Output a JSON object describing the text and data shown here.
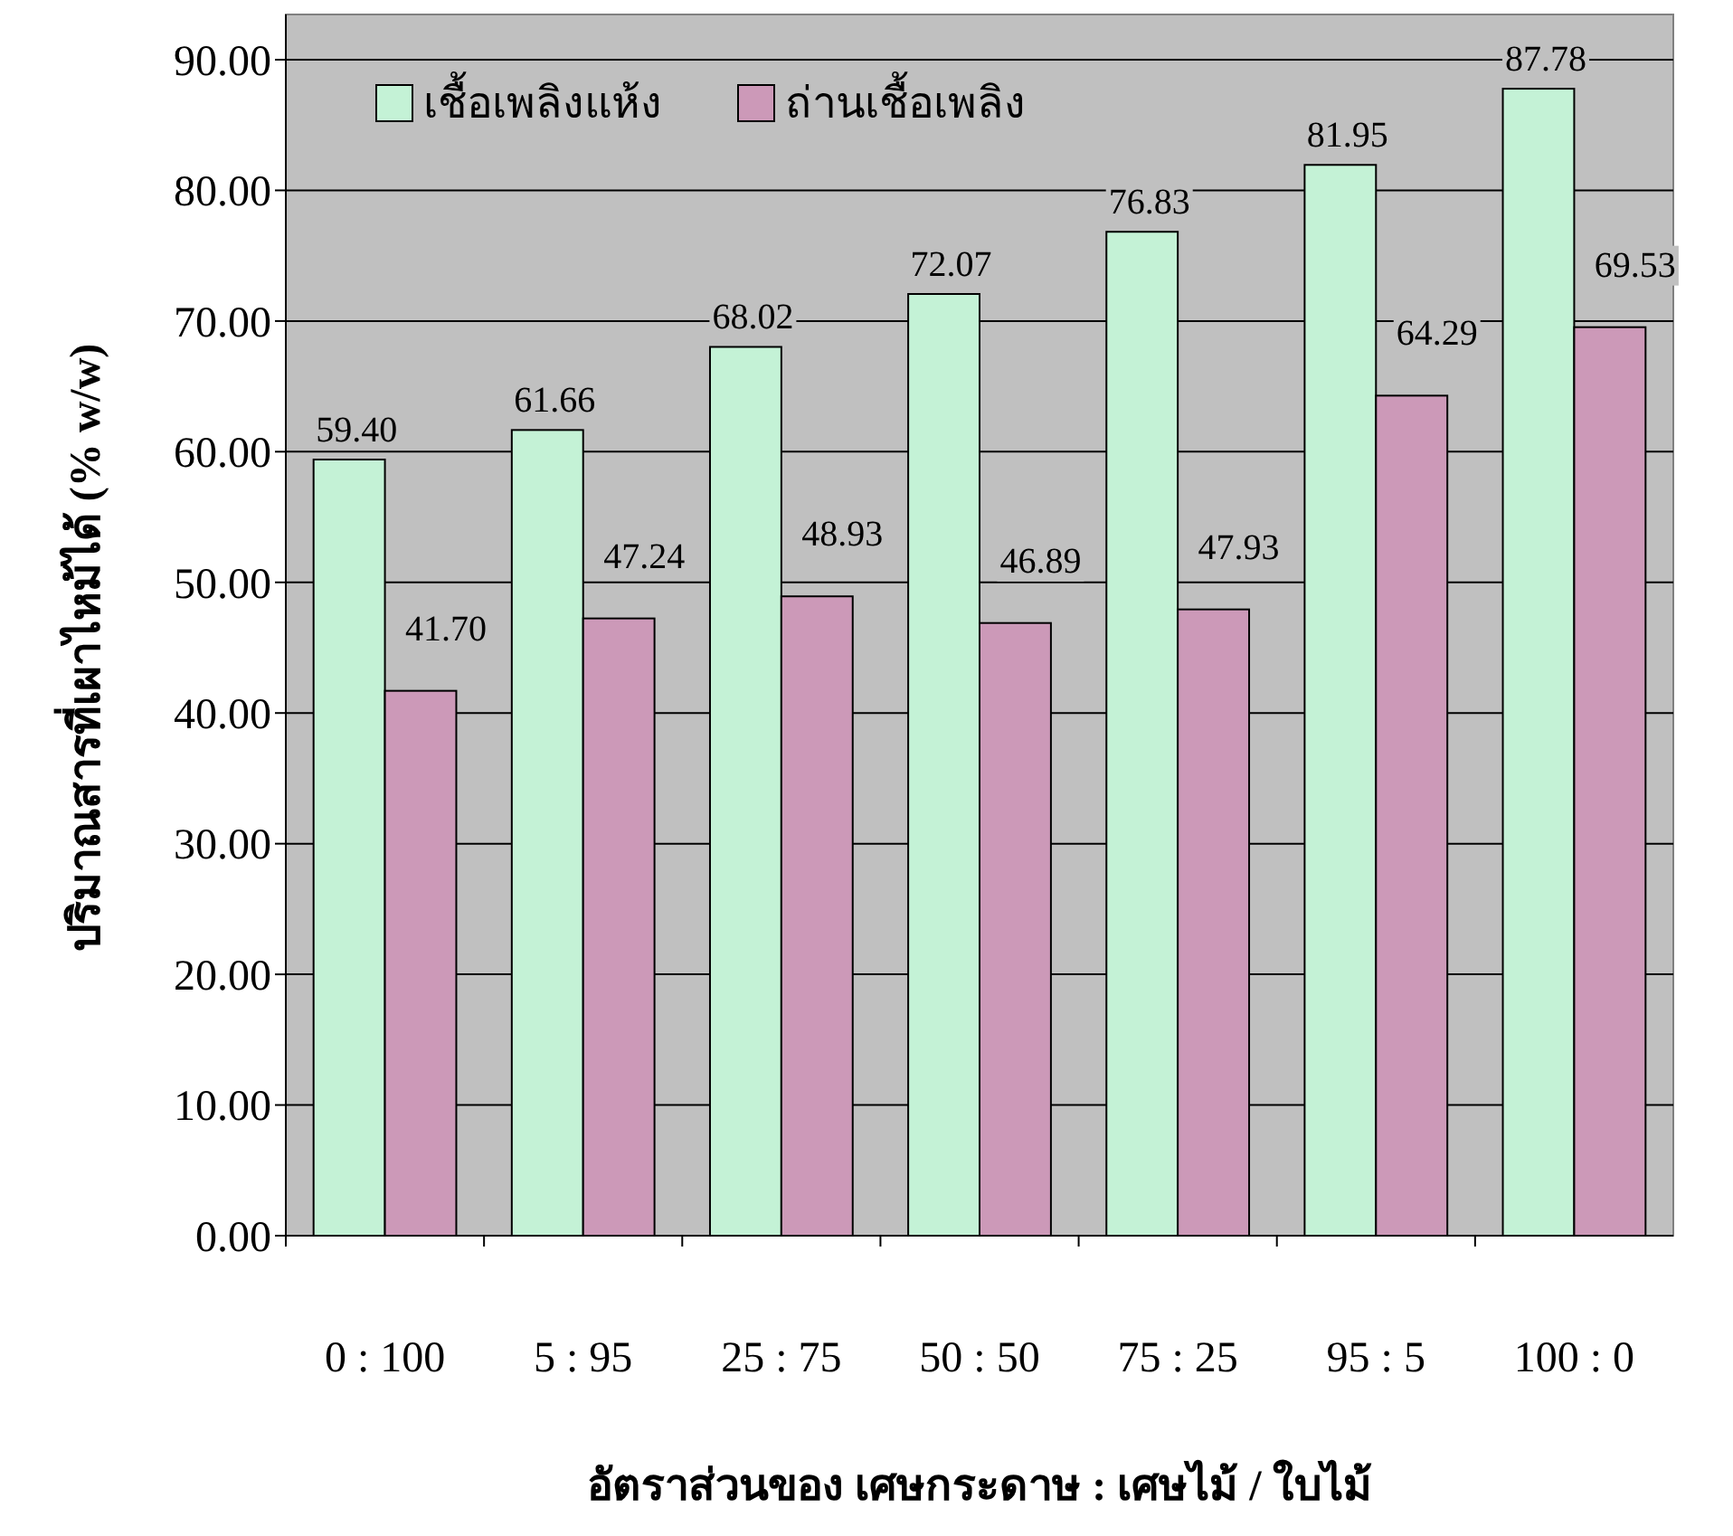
{
  "chart_data": {
    "type": "bar",
    "xlabel": "อัตราส่วนของ เศษกระดาษ : เศษไม้ / ใบไม้",
    "ylabel": "ปริมาณสารที่เผาไหม้ได้ (% w/w)",
    "categories": [
      "0 : 100",
      "5 : 95",
      "25 : 75",
      "50 : 50",
      "75 : 25",
      "95 : 5",
      "100 : 0"
    ],
    "series": [
      {
        "name": "เชื้อเพลิงแห้ง",
        "color": "#c4f2d6",
        "values": [
          59.4,
          61.66,
          68.02,
          72.07,
          76.83,
          81.95,
          87.78
        ],
        "value_labels": [
          "59.40",
          "61.66",
          "68.02",
          "72.07",
          "76.83",
          "81.95",
          "87.78"
        ]
      },
      {
        "name": "ถ่านเชื้อเพลิง",
        "color": "#cc99b8",
        "values": [
          41.7,
          47.24,
          48.93,
          46.89,
          47.93,
          64.29,
          69.53
        ],
        "value_labels": [
          "41.70",
          "47.24",
          "48.93",
          "46.89",
          "47.93",
          "64.29",
          "69.53"
        ]
      }
    ],
    "ylim": [
      0,
      90
    ],
    "yticks": [
      {
        "value": 0,
        "label": "0.00"
      },
      {
        "value": 10,
        "label": "10.00"
      },
      {
        "value": 20,
        "label": "20.00"
      },
      {
        "value": 30,
        "label": "30.00"
      },
      {
        "value": 40,
        "label": "40.00"
      },
      {
        "value": 50,
        "label": "50.00"
      },
      {
        "value": 60,
        "label": "60.00"
      },
      {
        "value": 70,
        "label": "70.00"
      },
      {
        "value": 80,
        "label": "80.00"
      },
      {
        "value": 90,
        "label": "90.00"
      }
    ],
    "grid": "y",
    "legend": "top left"
  }
}
